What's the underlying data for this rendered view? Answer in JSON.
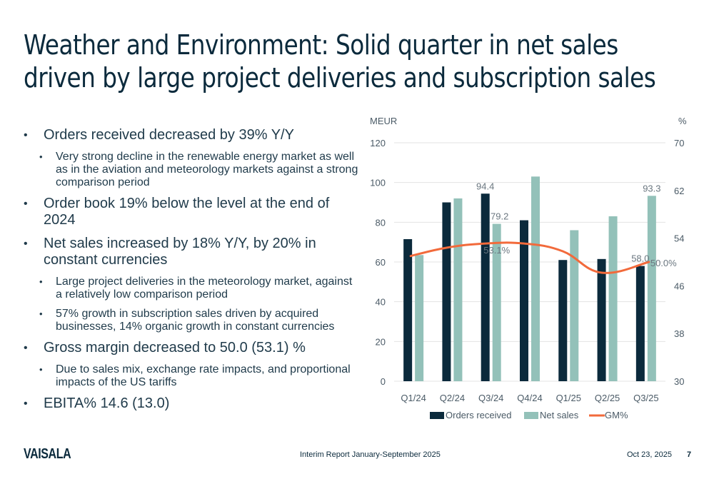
{
  "slide": {
    "title_line1": "Weather and Environment: Solid quarter in net sales",
    "title_line2": "driven by large project deliveries and subscription sales",
    "bullets": [
      {
        "level": 1,
        "text": "Orders received decreased by 39% Y/Y"
      },
      {
        "level": 2,
        "text": "Very strong decline in the renewable energy market as well as in the aviation and meteorology markets against a strong comparison period"
      },
      {
        "level": 1,
        "text": "Order book 19% below the level at the end of 2024"
      },
      {
        "level": 1,
        "text": "Net sales increased by 18% Y/Y, by 20% in constant currencies"
      },
      {
        "level": 2,
        "text": "Large project deliveries in the meteorology market, against a relatively low comparison period"
      },
      {
        "level": 2,
        "text": "57% growth in subscription sales driven by acquired businesses, 14% organic growth in constant currencies"
      },
      {
        "level": 1,
        "text": "Gross margin decreased to 50.0 (53.1) %"
      },
      {
        "level": 2,
        "text": "Due to sales mix, exchange rate impacts, and proportional impacts of the US tariffs"
      },
      {
        "level": 1,
        "text": "EBITA% 14.6 (13.0)"
      }
    ]
  },
  "footer": {
    "logo": "VAISALA",
    "report": "Interim Report January-September 2025",
    "date": "Oct 23, 2025",
    "page": "7"
  },
  "colors": {
    "orders": "#0b2a3c",
    "net_sales": "#93c1b9",
    "gm": "#f26a3b",
    "grid": "#e3e3e3",
    "text": "#4a5a66"
  },
  "chart_data": {
    "type": "bar",
    "title": "",
    "categories": [
      "Q1/24",
      "Q2/24",
      "Q3/24",
      "Q4/24",
      "Q1/25",
      "Q2/25",
      "Q3/25"
    ],
    "series": [
      {
        "name": "Orders received",
        "type": "bar",
        "axis": "left",
        "values": [
          71.5,
          90.0,
          94.4,
          81.0,
          61.0,
          61.5,
          58.0
        ],
        "labels": [
          null,
          null,
          "94.4",
          null,
          null,
          null,
          "58.0"
        ]
      },
      {
        "name": "Net sales",
        "type": "bar",
        "axis": "left",
        "values": [
          63.5,
          92.0,
          79.2,
          103.0,
          76.0,
          83.0,
          93.3
        ],
        "labels": [
          null,
          null,
          "79.2",
          null,
          null,
          null,
          "93.3"
        ]
      },
      {
        "name": "GM%",
        "type": "line",
        "axis": "right",
        "values": [
          51.0,
          52.4,
          53.1,
          53.1,
          51.8,
          48.2,
          50.0
        ],
        "labels": [
          null,
          null,
          "53.1%",
          null,
          null,
          null,
          "50.0%"
        ]
      }
    ],
    "ylabel_left": "MEUR",
    "ylabel_right": "%",
    "ylim_left": [
      0,
      120
    ],
    "yticks_left": [
      0,
      20,
      40,
      60,
      80,
      100,
      120
    ],
    "ylim_right": [
      30,
      70
    ],
    "yticks_right": [
      30,
      38,
      46,
      54,
      62,
      70
    ],
    "grid": true,
    "legend_position": "bottom"
  }
}
